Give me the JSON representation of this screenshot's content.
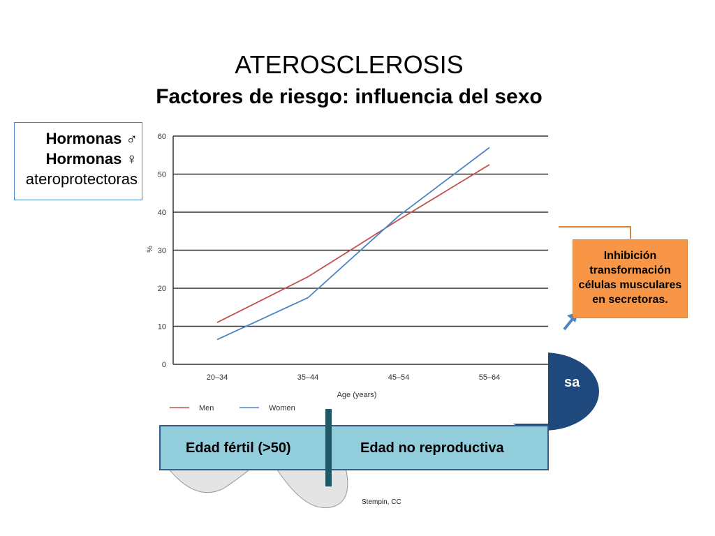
{
  "title": "ATEROSCLEROSIS",
  "subtitle": "Factores de riesgo: influencia del sexo",
  "left_box": {
    "line1": "Hormonas ♂",
    "line2": "Hormonas ♀",
    "line3": "ateroprotectoras"
  },
  "orange_box": {
    "lines": [
      "Inhibición",
      "transformación",
      "células musculares",
      "en secretoras."
    ]
  },
  "circle_text": "sa",
  "age_bar": {
    "left": "Edad fértil (>50)",
    "right": "Edad no reproductiva"
  },
  "credit": "Stempin, CC",
  "colors": {
    "men": "#c0504d",
    "women": "#4a86c6",
    "orange": "#f79646",
    "navy": "#1f497d",
    "teal": "#92cddc"
  },
  "chart_data": {
    "type": "line",
    "categories": [
      "20–34",
      "35–44",
      "45–54",
      "55–64"
    ],
    "series": [
      {
        "name": "Men",
        "values": [
          11,
          23,
          38,
          52.5
        ]
      },
      {
        "name": "Women",
        "values": [
          6.5,
          17.5,
          39,
          57
        ]
      }
    ],
    "xlabel": "Age (years)",
    "ylabel": "%",
    "ylim": [
      0,
      60
    ],
    "yticks": [
      0,
      10,
      20,
      30,
      40,
      50,
      60
    ],
    "grid": true,
    "legend": "bottom-left"
  }
}
